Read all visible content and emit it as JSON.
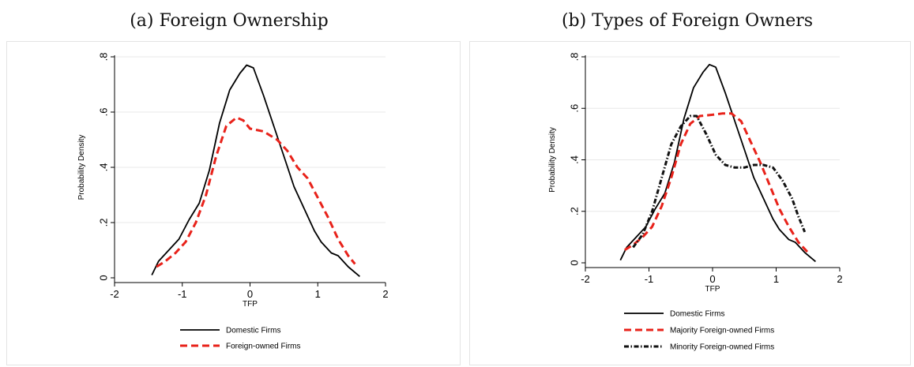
{
  "chart_data": [
    {
      "type": "line",
      "title": "(a) Foreign Ownership",
      "xlabel": "TFP",
      "ylabel": "Probability Density",
      "xlim": [
        -2,
        2
      ],
      "ylim": [
        0,
        0.8
      ],
      "xticks": [
        "-2",
        "-1",
        "0",
        "1",
        "2"
      ],
      "yticks": [
        "0",
        ".2",
        ".4",
        ".6",
        ".8"
      ],
      "grid": true,
      "legend": "bottom",
      "series": [
        {
          "name": "Domestic Firms",
          "color": "#000000",
          "style": "solid",
          "points": [
            [
              -1.45,
              0.01
            ],
            [
              -1.35,
              0.06
            ],
            [
              -1.2,
              0.1
            ],
            [
              -1.05,
              0.14
            ],
            [
              -0.9,
              0.21
            ],
            [
              -0.75,
              0.27
            ],
            [
              -0.6,
              0.39
            ],
            [
              -0.45,
              0.56
            ],
            [
              -0.3,
              0.68
            ],
            [
              -0.15,
              0.74
            ],
            [
              -0.05,
              0.77
            ],
            [
              0.05,
              0.76
            ],
            [
              0.2,
              0.66
            ],
            [
              0.35,
              0.55
            ],
            [
              0.5,
              0.44
            ],
            [
              0.65,
              0.33
            ],
            [
              0.8,
              0.25
            ],
            [
              0.95,
              0.17
            ],
            [
              1.05,
              0.13
            ],
            [
              1.2,
              0.09
            ],
            [
              1.3,
              0.08
            ],
            [
              1.45,
              0.04
            ],
            [
              1.62,
              0.005
            ]
          ]
        },
        {
          "name": "Foreign-owned Firms",
          "color": "#e8221a",
          "style": "dashed",
          "points": [
            [
              -1.38,
              0.04
            ],
            [
              -1.25,
              0.06
            ],
            [
              -1.1,
              0.09
            ],
            [
              -0.95,
              0.13
            ],
            [
              -0.8,
              0.2
            ],
            [
              -0.65,
              0.3
            ],
            [
              -0.5,
              0.44
            ],
            [
              -0.35,
              0.55
            ],
            [
              -0.2,
              0.58
            ],
            [
              -0.1,
              0.57
            ],
            [
              0.0,
              0.54
            ],
            [
              0.2,
              0.53
            ],
            [
              0.4,
              0.5
            ],
            [
              0.55,
              0.46
            ],
            [
              0.7,
              0.4
            ],
            [
              0.85,
              0.36
            ],
            [
              1.0,
              0.29
            ],
            [
              1.15,
              0.22
            ],
            [
              1.3,
              0.14
            ],
            [
              1.45,
              0.08
            ],
            [
              1.55,
              0.05
            ]
          ]
        }
      ]
    },
    {
      "type": "line",
      "title": "(b) Types of Foreign Owners",
      "xlabel": "TFP",
      "ylabel": "Probability Density",
      "xlim": [
        -2,
        2
      ],
      "ylim": [
        0,
        0.8
      ],
      "xticks": [
        "-2",
        "-1",
        "0",
        "1",
        "2"
      ],
      "yticks": [
        "0",
        ".2",
        ".4",
        ".6",
        ".8"
      ],
      "grid": true,
      "legend": "bottom",
      "series": [
        {
          "name": "Domestic Firms",
          "color": "#000000",
          "style": "solid",
          "points": [
            [
              -1.45,
              0.01
            ],
            [
              -1.35,
              0.06
            ],
            [
              -1.2,
              0.1
            ],
            [
              -1.05,
              0.14
            ],
            [
              -0.9,
              0.21
            ],
            [
              -0.75,
              0.27
            ],
            [
              -0.6,
              0.39
            ],
            [
              -0.45,
              0.56
            ],
            [
              -0.3,
              0.68
            ],
            [
              -0.15,
              0.74
            ],
            [
              -0.05,
              0.77
            ],
            [
              0.05,
              0.76
            ],
            [
              0.2,
              0.66
            ],
            [
              0.35,
              0.55
            ],
            [
              0.5,
              0.44
            ],
            [
              0.65,
              0.33
            ],
            [
              0.8,
              0.25
            ],
            [
              0.95,
              0.17
            ],
            [
              1.05,
              0.13
            ],
            [
              1.2,
              0.09
            ],
            [
              1.3,
              0.08
            ],
            [
              1.45,
              0.04
            ],
            [
              1.62,
              0.005
            ]
          ]
        },
        {
          "name": "Majority Foreign-owned Firms",
          "color": "#e8221a",
          "style": "dashed",
          "points": [
            [
              -1.38,
              0.05
            ],
            [
              -1.25,
              0.07
            ],
            [
              -1.1,
              0.1
            ],
            [
              -0.95,
              0.14
            ],
            [
              -0.8,
              0.22
            ],
            [
              -0.65,
              0.33
            ],
            [
              -0.5,
              0.46
            ],
            [
              -0.35,
              0.54
            ],
            [
              -0.2,
              0.57
            ],
            [
              0.0,
              0.575
            ],
            [
              0.15,
              0.58
            ],
            [
              0.3,
              0.58
            ],
            [
              0.45,
              0.55
            ],
            [
              0.6,
              0.47
            ],
            [
              0.75,
              0.39
            ],
            [
              0.9,
              0.3
            ],
            [
              1.05,
              0.21
            ],
            [
              1.2,
              0.14
            ],
            [
              1.35,
              0.08
            ],
            [
              1.5,
              0.04
            ]
          ]
        },
        {
          "name": "Minority Foreign-owned Firms",
          "color": "#111111",
          "style": "dashdot",
          "points": [
            [
              -1.25,
              0.06
            ],
            [
              -1.1,
              0.11
            ],
            [
              -0.95,
              0.2
            ],
            [
              -0.8,
              0.33
            ],
            [
              -0.65,
              0.46
            ],
            [
              -0.5,
              0.53
            ],
            [
              -0.35,
              0.57
            ],
            [
              -0.25,
              0.57
            ],
            [
              -0.1,
              0.5
            ],
            [
              0.05,
              0.42
            ],
            [
              0.2,
              0.38
            ],
            [
              0.35,
              0.37
            ],
            [
              0.5,
              0.37
            ],
            [
              0.65,
              0.38
            ],
            [
              0.8,
              0.38
            ],
            [
              0.95,
              0.37
            ],
            [
              1.1,
              0.32
            ],
            [
              1.25,
              0.25
            ],
            [
              1.35,
              0.18
            ],
            [
              1.45,
              0.12
            ]
          ]
        }
      ]
    }
  ]
}
